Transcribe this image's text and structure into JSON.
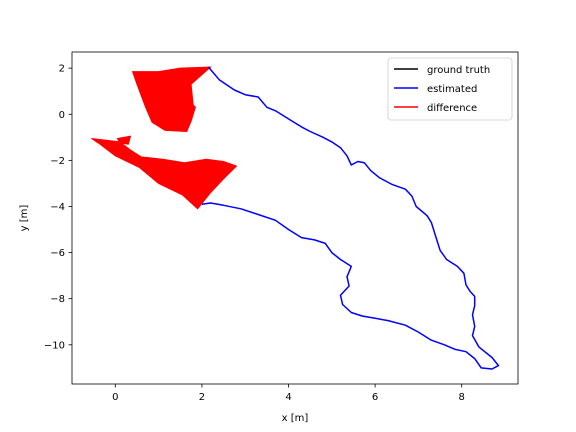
{
  "chart_data": {
    "type": "line",
    "title": "",
    "xlabel": "x [m]",
    "ylabel": "y [m]",
    "xlim": [
      -1.0,
      9.3
    ],
    "ylim": [
      -11.7,
      2.7
    ],
    "xticks": [
      0,
      2,
      4,
      6,
      8
    ],
    "yticks": [
      2,
      0,
      -2,
      -4,
      -6,
      -8,
      -10
    ],
    "xtick_labels": [
      "0",
      "2",
      "4",
      "6",
      "8"
    ],
    "ytick_labels": [
      "2",
      "0",
      "−2",
      "−4",
      "−6",
      "−8",
      "−10"
    ],
    "grid": false,
    "legend_position": "top-right",
    "series": [
      {
        "name": "ground truth",
        "color": "#000000",
        "points": []
      },
      {
        "name": "estimated",
        "color": "#0000ff",
        "points": [
          [
            2.15,
            2.05
          ],
          [
            2.4,
            1.5
          ],
          [
            2.75,
            1.05
          ],
          [
            3.0,
            0.85
          ],
          [
            3.3,
            0.75
          ],
          [
            3.5,
            0.3
          ],
          [
            3.7,
            0.15
          ],
          [
            4.0,
            -0.2
          ],
          [
            4.3,
            -0.55
          ],
          [
            4.5,
            -0.75
          ],
          [
            4.8,
            -1.0
          ],
          [
            5.0,
            -1.2
          ],
          [
            5.2,
            -1.45
          ],
          [
            5.35,
            -1.8
          ],
          [
            5.45,
            -2.2
          ],
          [
            5.6,
            -2.05
          ],
          [
            5.75,
            -2.1
          ],
          [
            5.9,
            -2.45
          ],
          [
            6.1,
            -2.75
          ],
          [
            6.4,
            -3.05
          ],
          [
            6.7,
            -3.25
          ],
          [
            6.85,
            -3.55
          ],
          [
            6.95,
            -4.0
          ],
          [
            7.2,
            -4.4
          ],
          [
            7.3,
            -4.7
          ],
          [
            7.4,
            -5.3
          ],
          [
            7.5,
            -5.9
          ],
          [
            7.65,
            -6.3
          ],
          [
            7.9,
            -6.6
          ],
          [
            8.05,
            -6.9
          ],
          [
            8.1,
            -7.4
          ],
          [
            8.2,
            -7.7
          ],
          [
            8.3,
            -7.9
          ],
          [
            8.3,
            -8.3
          ],
          [
            8.25,
            -8.7
          ],
          [
            8.3,
            -9.2
          ],
          [
            8.25,
            -9.6
          ],
          [
            8.4,
            -10.1
          ],
          [
            8.7,
            -10.55
          ],
          [
            8.85,
            -10.9
          ],
          [
            8.7,
            -11.05
          ],
          [
            8.45,
            -11.0
          ],
          [
            8.3,
            -10.6
          ],
          [
            8.1,
            -10.3
          ],
          [
            7.85,
            -10.2
          ],
          [
            7.6,
            -10.0
          ],
          [
            7.3,
            -9.8
          ],
          [
            7.0,
            -9.45
          ],
          [
            6.7,
            -9.15
          ],
          [
            6.3,
            -8.95
          ],
          [
            6.0,
            -8.85
          ],
          [
            5.7,
            -8.75
          ],
          [
            5.45,
            -8.6
          ],
          [
            5.25,
            -8.25
          ],
          [
            5.2,
            -7.85
          ],
          [
            5.4,
            -7.45
          ],
          [
            5.35,
            -7.05
          ],
          [
            5.45,
            -6.6
          ],
          [
            5.2,
            -6.3
          ],
          [
            5.0,
            -6.0
          ],
          [
            4.85,
            -5.6
          ],
          [
            4.6,
            -5.45
          ],
          [
            4.3,
            -5.35
          ],
          [
            4.0,
            -5.0
          ],
          [
            3.7,
            -4.6
          ],
          [
            3.3,
            -4.35
          ],
          [
            2.9,
            -4.1
          ],
          [
            2.5,
            -3.95
          ],
          [
            2.2,
            -3.85
          ],
          [
            2.0,
            -3.9
          ]
        ]
      },
      {
        "name": "difference",
        "color": "#ff0000",
        "polygons": [
          [
            [
              0.4,
              1.85
            ],
            [
              1.0,
              1.85
            ],
            [
              1.5,
              2.0
            ],
            [
              2.2,
              2.05
            ],
            [
              1.75,
              1.3
            ],
            [
              1.8,
              0.4
            ],
            [
              1.85,
              0.3
            ],
            [
              1.75,
              -0.3
            ],
            [
              1.65,
              -0.75
            ],
            [
              1.15,
              -0.7
            ],
            [
              0.85,
              -0.35
            ],
            [
              0.7,
              0.3
            ],
            [
              0.5,
              1.3
            ]
          ],
          [
            [
              -0.55,
              -1.05
            ],
            [
              0.1,
              -1.2
            ],
            [
              0.35,
              -1.55
            ],
            [
              0.6,
              -1.85
            ],
            [
              1.1,
              -1.95
            ],
            [
              1.6,
              -2.1
            ],
            [
              2.1,
              -1.95
            ],
            [
              2.5,
              -2.05
            ],
            [
              2.8,
              -2.25
            ],
            [
              2.5,
              -2.8
            ],
            [
              2.2,
              -3.4
            ],
            [
              1.9,
              -4.1
            ],
            [
              1.55,
              -3.5
            ],
            [
              1.0,
              -3.0
            ],
            [
              0.55,
              -2.3
            ],
            [
              0.0,
              -1.8
            ],
            [
              -0.35,
              -1.3
            ]
          ],
          [
            [
              0.05,
              -1.05
            ],
            [
              0.35,
              -0.95
            ],
            [
              0.3,
              -1.3
            ],
            [
              0.1,
              -1.25
            ]
          ]
        ]
      }
    ]
  }
}
